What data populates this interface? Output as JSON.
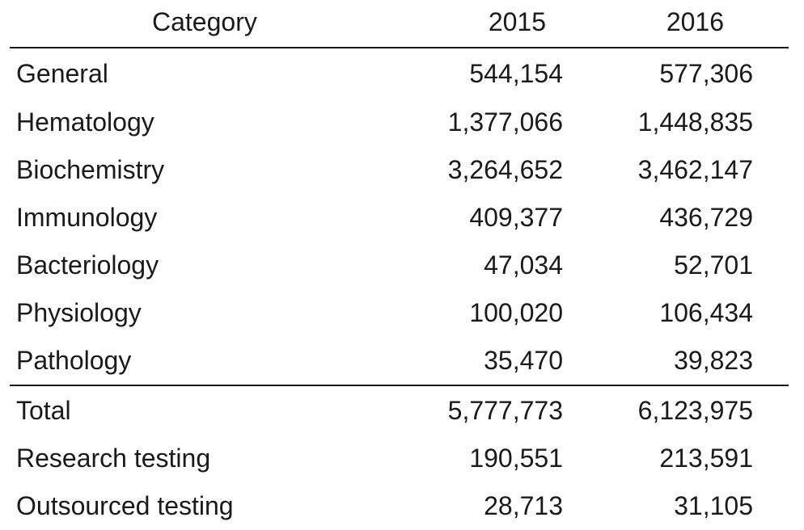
{
  "table": {
    "headers": {
      "category": "Category",
      "y2015": "2015",
      "y2016": "2016"
    },
    "rows": [
      {
        "category": "General",
        "y2015": "544,154",
        "y2016": "577,306"
      },
      {
        "category": "Hematology",
        "y2015": "1,377,066",
        "y2016": "1,448,835"
      },
      {
        "category": "Biochemistry",
        "y2015": "3,264,652",
        "y2016": "3,462,147"
      },
      {
        "category": "Immunology",
        "y2015": "409,377",
        "y2016": "436,729"
      },
      {
        "category": "Bacteriology",
        "y2015": "47,034",
        "y2016": "52,701"
      },
      {
        "category": "Physiology",
        "y2015": "100,020",
        "y2016": "106,434"
      },
      {
        "category": "Pathology",
        "y2015": "35,470",
        "y2016": "39,823"
      }
    ],
    "summary_rows": [
      {
        "category": "Total",
        "y2015": "5,777,773",
        "y2016": "6,123,975"
      },
      {
        "category": "Research testing",
        "y2015": "190,551",
        "y2016": "213,591"
      },
      {
        "category": "Outsourced testing",
        "y2015": "28,713",
        "y2016": "31,105"
      }
    ]
  }
}
